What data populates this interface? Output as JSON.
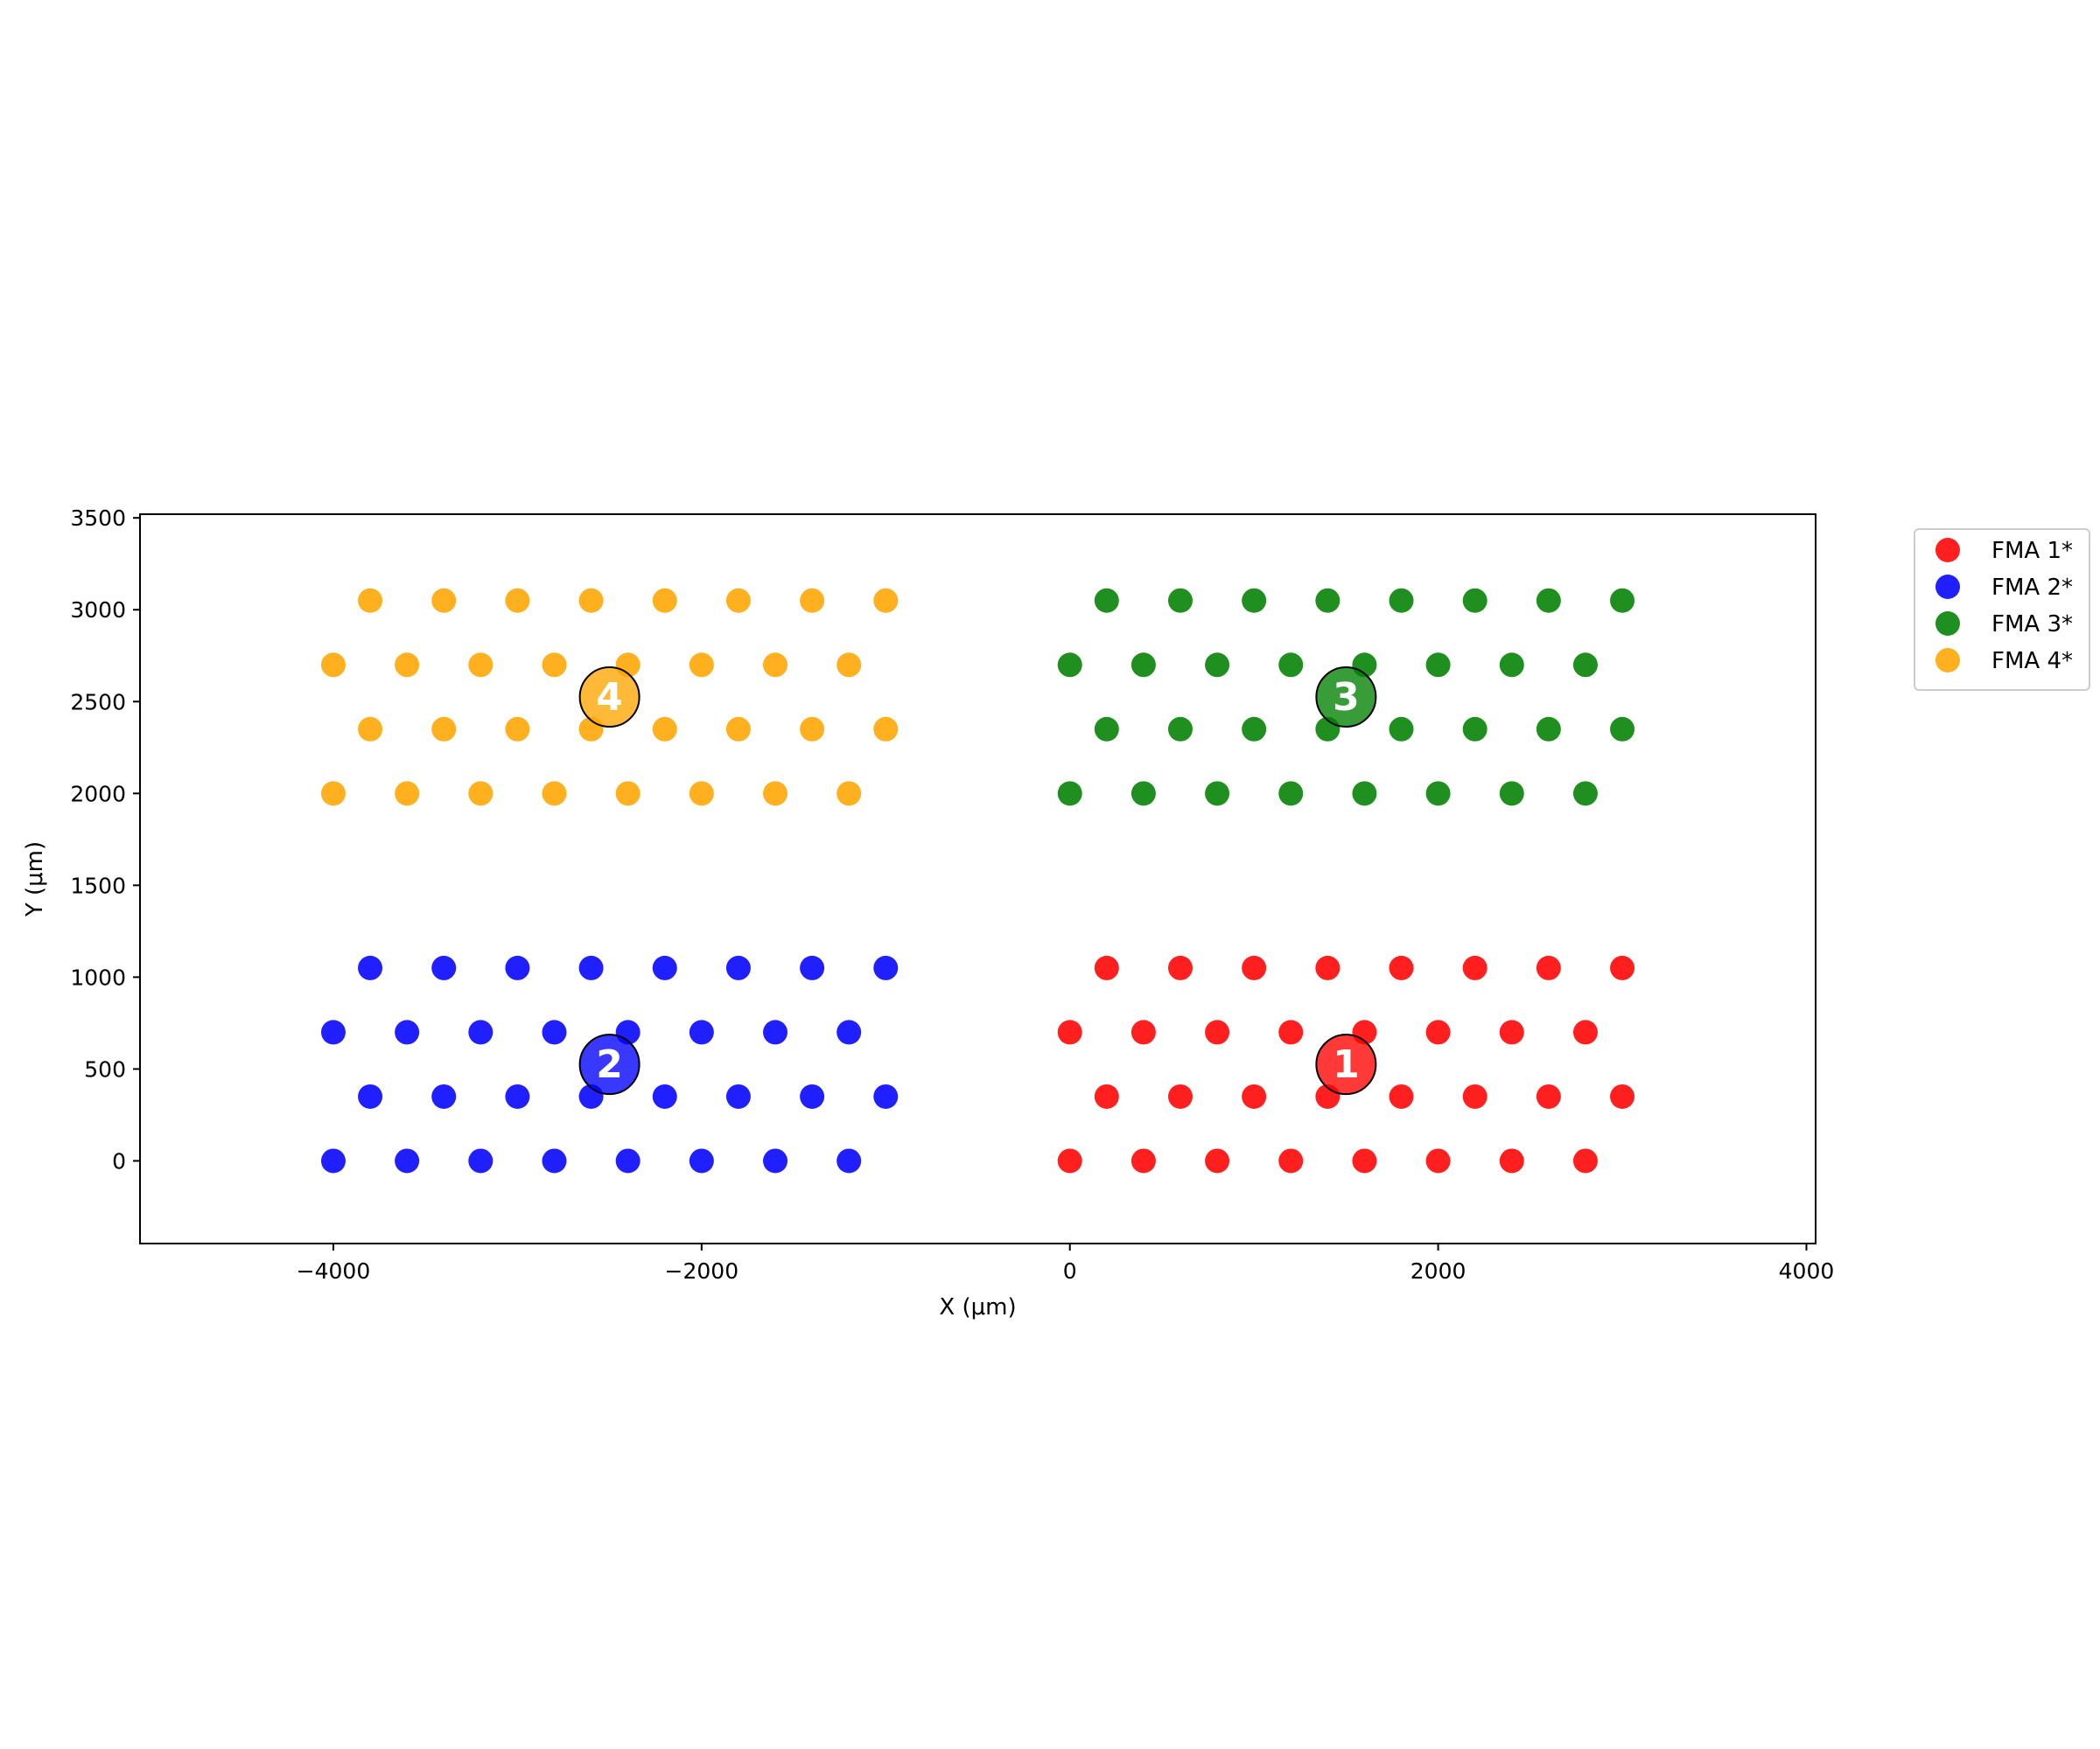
{
  "chart_data": {
    "type": "scatter",
    "title": "",
    "xlabel": "X (μm)",
    "ylabel": "Y (μm)",
    "xlim": [
      -5050,
      4050
    ],
    "ylim": [
      -450,
      3520
    ],
    "xticks": [
      -4000,
      -2000,
      0,
      2000,
      4000
    ],
    "xtick_labels": [
      "−4000",
      "−2000",
      "0",
      "2000",
      "4000"
    ],
    "yticks": [
      0,
      500,
      1000,
      1500,
      2000,
      2500,
      3000,
      3500
    ],
    "ytick_labels": [
      "0",
      "500",
      "1000",
      "1500",
      "2000",
      "2500",
      "3000",
      "3500"
    ],
    "grid": false,
    "legend_position": "outside-upper-right",
    "series": [
      {
        "name": "FMA 1*",
        "color": "#ff0000",
        "rows": [
          {
            "y": 0,
            "x_start": 0,
            "count": 8
          },
          {
            "y": 350,
            "x_start": 200,
            "count": 8
          },
          {
            "y": 700,
            "x_start": 0,
            "count": 8
          },
          {
            "y": 1050,
            "x_start": 200,
            "count": 8
          }
        ],
        "x_step": 400
      },
      {
        "name": "FMA 2*",
        "color": "#0000ff",
        "rows": [
          {
            "y": 0,
            "x_start": -4000,
            "count": 8
          },
          {
            "y": 350,
            "x_start": -3800,
            "count": 8
          },
          {
            "y": 700,
            "x_start": -4000,
            "count": 8
          },
          {
            "y": 1050,
            "x_start": -3800,
            "count": 8
          }
        ],
        "x_step": 400
      },
      {
        "name": "FMA 3*",
        "color": "#008000",
        "rows": [
          {
            "y": 2000,
            "x_start": 0,
            "count": 8
          },
          {
            "y": 2350,
            "x_start": 200,
            "count": 8
          },
          {
            "y": 2700,
            "x_start": 0,
            "count": 8
          },
          {
            "y": 3050,
            "x_start": 200,
            "count": 8
          }
        ],
        "x_step": 400
      },
      {
        "name": "FMA 4*",
        "color": "#ffa500",
        "rows": [
          {
            "y": 2000,
            "x_start": -4000,
            "count": 8
          },
          {
            "y": 2350,
            "x_start": -3800,
            "count": 8
          },
          {
            "y": 2700,
            "x_start": -4000,
            "count": 8
          },
          {
            "y": 3050,
            "x_start": -3800,
            "count": 8
          }
        ],
        "x_step": 400
      }
    ],
    "centers": [
      {
        "label": "1",
        "x": 1500,
        "y": 525,
        "color": "#ff0000"
      },
      {
        "label": "2",
        "x": -2500,
        "y": 525,
        "color": "#0000ff"
      },
      {
        "label": "3",
        "x": 1500,
        "y": 2525,
        "color": "#008000"
      },
      {
        "label": "4",
        "x": -2500,
        "y": 2525,
        "color": "#ffa500"
      }
    ]
  }
}
